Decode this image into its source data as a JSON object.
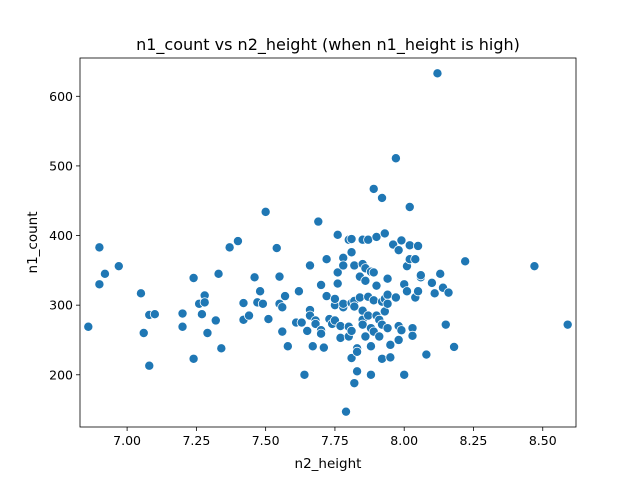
{
  "chart_data": {
    "type": "scatter",
    "title": "n1_count vs n2_height (when n1_height is high)",
    "xlabel": "n2_height",
    "ylabel": "n1_count",
    "xlim": [
      6.83,
      8.62
    ],
    "ylim": [
      125,
      655
    ],
    "xticks": [
      7.0,
      7.25,
      7.5,
      7.75,
      8.0,
      8.25,
      8.5
    ],
    "xtick_labels": [
      "7.00",
      "7.25",
      "7.50",
      "7.75",
      "8.00",
      "8.25",
      "8.50"
    ],
    "yticks": [
      200,
      300,
      400,
      500,
      600
    ],
    "ytick_labels": [
      "200",
      "300",
      "400",
      "500",
      "600"
    ],
    "grid": false,
    "legend": "none",
    "colors": {
      "point_fill": "#1f77b4",
      "point_edge": "#ffffff",
      "axis": "#000000"
    },
    "points": [
      [
        6.86,
        269
      ],
      [
        6.9,
        383
      ],
      [
        6.9,
        330
      ],
      [
        6.92,
        345
      ],
      [
        6.97,
        356
      ],
      [
        7.05,
        317
      ],
      [
        7.06,
        260
      ],
      [
        7.08,
        286
      ],
      [
        7.08,
        213
      ],
      [
        7.1,
        287
      ],
      [
        7.2,
        288
      ],
      [
        7.2,
        269
      ],
      [
        7.24,
        339
      ],
      [
        7.24,
        223
      ],
      [
        7.26,
        302
      ],
      [
        7.27,
        287
      ],
      [
        7.28,
        314
      ],
      [
        7.28,
        304
      ],
      [
        7.29,
        260
      ],
      [
        7.32,
        278
      ],
      [
        7.33,
        345
      ],
      [
        7.34,
        238
      ],
      [
        7.37,
        383
      ],
      [
        7.4,
        392
      ],
      [
        7.42,
        303
      ],
      [
        7.42,
        279
      ],
      [
        7.44,
        285
      ],
      [
        7.46,
        341
      ],
      [
        7.46,
        340
      ],
      [
        7.47,
        304
      ],
      [
        7.48,
        320
      ],
      [
        7.49,
        302
      ],
      [
        7.5,
        434
      ],
      [
        7.51,
        280
      ],
      [
        7.54,
        382
      ],
      [
        7.55,
        341
      ],
      [
        7.55,
        302
      ],
      [
        7.56,
        297
      ],
      [
        7.56,
        262
      ],
      [
        7.57,
        313
      ],
      [
        7.58,
        241
      ],
      [
        7.61,
        275
      ],
      [
        7.62,
        320
      ],
      [
        7.63,
        275
      ],
      [
        7.64,
        200
      ],
      [
        7.65,
        263
      ],
      [
        7.66,
        357
      ],
      [
        7.66,
        293
      ],
      [
        7.66,
        285
      ],
      [
        7.67,
        241
      ],
      [
        7.68,
        278
      ],
      [
        7.68,
        273
      ],
      [
        7.69,
        420
      ],
      [
        7.7,
        329
      ],
      [
        7.7,
        264
      ],
      [
        7.7,
        259
      ],
      [
        7.71,
        239
      ],
      [
        7.72,
        366
      ],
      [
        7.72,
        313
      ],
      [
        7.73,
        280
      ],
      [
        7.74,
        273
      ],
      [
        7.75,
        300
      ],
      [
        7.75,
        278
      ],
      [
        7.75,
        309
      ],
      [
        7.76,
        401
      ],
      [
        7.76,
        347
      ],
      [
        7.76,
        331
      ],
      [
        7.77,
        270
      ],
      [
        7.77,
        253
      ],
      [
        7.78,
        368
      ],
      [
        7.78,
        357
      ],
      [
        7.78,
        297
      ],
      [
        7.78,
        302
      ],
      [
        7.79,
        147
      ],
      [
        7.8,
        394
      ],
      [
        7.8,
        269
      ],
      [
        7.8,
        255
      ],
      [
        7.81,
        395
      ],
      [
        7.81,
        376
      ],
      [
        7.81,
        303
      ],
      [
        7.81,
        263
      ],
      [
        7.81,
        224
      ],
      [
        7.82,
        357
      ],
      [
        7.82,
        306
      ],
      [
        7.82,
        298
      ],
      [
        7.82,
        188
      ],
      [
        7.83,
        238
      ],
      [
        7.83,
        233
      ],
      [
        7.83,
        205
      ],
      [
        7.84,
        341
      ],
      [
        7.84,
        311
      ],
      [
        7.85,
        394
      ],
      [
        7.85,
        359
      ],
      [
        7.85,
        292
      ],
      [
        7.85,
        279
      ],
      [
        7.85,
        272
      ],
      [
        7.86,
        353
      ],
      [
        7.86,
        335
      ],
      [
        7.86,
        255
      ],
      [
        7.87,
        394
      ],
      [
        7.87,
        312
      ],
      [
        7.87,
        285
      ],
      [
        7.88,
        348
      ],
      [
        7.88,
        267
      ],
      [
        7.88,
        241
      ],
      [
        7.88,
        200
      ],
      [
        7.89,
        467
      ],
      [
        7.89,
        347
      ],
      [
        7.89,
        307
      ],
      [
        7.89,
        262
      ],
      [
        7.9,
        398
      ],
      [
        7.9,
        328
      ],
      [
        7.9,
        285
      ],
      [
        7.91,
        279
      ],
      [
        7.91,
        255
      ],
      [
        7.92,
        454
      ],
      [
        7.92,
        305
      ],
      [
        7.92,
        272
      ],
      [
        7.92,
        223
      ],
      [
        7.93,
        403
      ],
      [
        7.93,
        309
      ],
      [
        7.93,
        291
      ],
      [
        7.94,
        338
      ],
      [
        7.94,
        315
      ],
      [
        7.94,
        302
      ],
      [
        7.94,
        267
      ],
      [
        7.95,
        243
      ],
      [
        7.95,
        225
      ],
      [
        7.96,
        387
      ],
      [
        7.97,
        511
      ],
      [
        7.97,
        311
      ],
      [
        7.98,
        379
      ],
      [
        7.98,
        270
      ],
      [
        7.98,
        250
      ],
      [
        7.99,
        393
      ],
      [
        7.99,
        264
      ],
      [
        8.0,
        200
      ],
      [
        8.0,
        330
      ],
      [
        8.01,
        356
      ],
      [
        8.01,
        320
      ],
      [
        8.02,
        441
      ],
      [
        8.02,
        386
      ],
      [
        8.02,
        366
      ],
      [
        8.03,
        267
      ],
      [
        8.03,
        256
      ],
      [
        8.04,
        366
      ],
      [
        8.04,
        311
      ],
      [
        8.05,
        385
      ],
      [
        8.05,
        320
      ],
      [
        8.06,
        340
      ],
      [
        8.06,
        343
      ],
      [
        8.08,
        229
      ],
      [
        8.1,
        332
      ],
      [
        8.11,
        317
      ],
      [
        8.12,
        633
      ],
      [
        8.13,
        345
      ],
      [
        8.14,
        325
      ],
      [
        8.15,
        272
      ],
      [
        8.16,
        318
      ],
      [
        8.18,
        240
      ],
      [
        8.22,
        363
      ],
      [
        8.47,
        356
      ],
      [
        8.59,
        272
      ]
    ]
  }
}
